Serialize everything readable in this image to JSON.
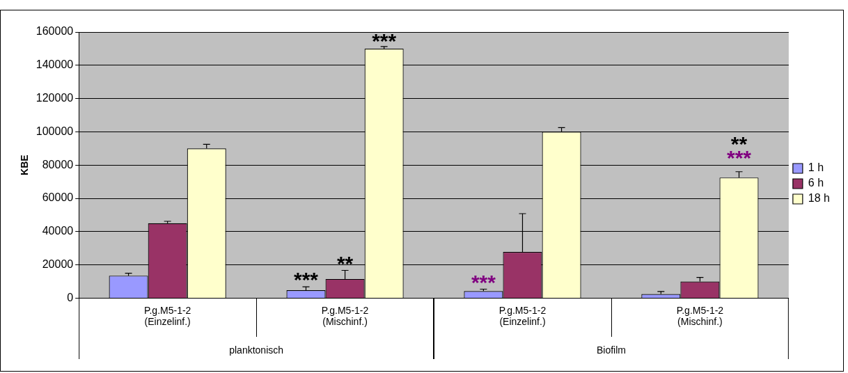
{
  "chart_data": {
    "type": "bar",
    "ylabel": "KBE",
    "categories": [
      "P.g.M5-1-2\n(Einzelinf.)",
      "P.g.M5-1-2\n(Mischinf.)",
      "P.g.M5-1-2\n(Einzelinf.)",
      "P.g.M5-1-2\n(Mischinf.)"
    ],
    "series": [
      {
        "name": "1 h",
        "color": "#9999ff",
        "values": [
          13500,
          4800,
          4200,
          2500
        ],
        "errors": [
          [
            13500,
            15000
          ],
          [
            4800,
            6800
          ],
          [
            4200,
            5400
          ],
          [
            2500,
            4000
          ]
        ]
      },
      {
        "name": "6 h",
        "color": "#993366",
        "values": [
          45000,
          11500,
          27800,
          10000
        ],
        "errors": [
          [
            45000,
            46200
          ],
          [
            11500,
            16700
          ],
          [
            27800,
            50800
          ],
          [
            10000,
            12500
          ]
        ]
      },
      {
        "name": "18 h",
        "color": "#ffffcc",
        "values": [
          90000,
          150000,
          100000,
          72500
        ],
        "errors": [
          [
            90000,
            92500
          ],
          [
            150000,
            151300
          ],
          [
            100000,
            102500
          ],
          [
            72500,
            76000
          ]
        ]
      }
    ],
    "ylim": [
      0,
      160000
    ],
    "yticks": [
      0,
      20000,
      40000,
      60000,
      80000,
      100000,
      120000,
      140000,
      160000
    ],
    "grid": "y",
    "legend": "right",
    "annotations": [
      "***",
      "***",
      "**",
      "***",
      "**",
      "***",
      "planktonisch",
      "Biofilm"
    ]
  }
}
